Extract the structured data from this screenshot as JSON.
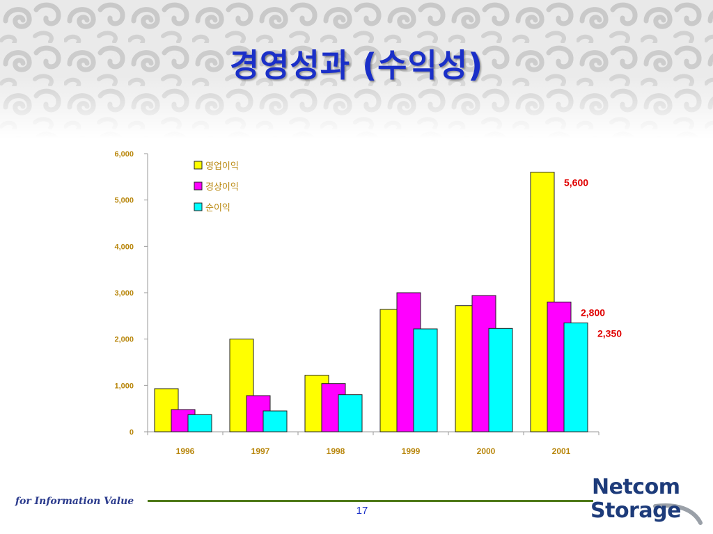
{
  "slide": {
    "title": "경영성과 (수익성)",
    "footer": "for Information Value",
    "page_number": "17",
    "logo": {
      "line1": "Netcom",
      "line2": "Storage"
    }
  },
  "colors": {
    "title": "#1a2fc8",
    "series": [
      "#ffff00",
      "#ff00ff",
      "#00ffff"
    ],
    "annotation": "#e00000",
    "axis_text": "#b8860b"
  },
  "chart_data": {
    "type": "bar",
    "categories": [
      "1996",
      "1997",
      "1998",
      "1999",
      "2000",
      "2001"
    ],
    "series": [
      {
        "name": "영업이익",
        "values": [
          930,
          2000,
          1220,
          2640,
          2720,
          5600
        ]
      },
      {
        "name": "경상이익",
        "values": [
          480,
          780,
          1040,
          3000,
          2940,
          2800
        ]
      },
      {
        "name": "순이익",
        "values": [
          370,
          450,
          800,
          2220,
          2230,
          2350
        ]
      }
    ],
    "ylim": [
      0,
      6000
    ],
    "yticks": [
      "0",
      "1,000",
      "2,000",
      "3,000",
      "4,000",
      "5,000",
      "6,000"
    ],
    "annotations": [
      {
        "text": "5,600",
        "category": "2001",
        "series": 0,
        "value": 5600
      },
      {
        "text": "2,800",
        "category": "2001",
        "series": 1,
        "value": 2800
      },
      {
        "text": "2,350",
        "category": "2001",
        "series": 2,
        "value": 2350
      }
    ],
    "legend_position": "top-left",
    "grid": false
  }
}
